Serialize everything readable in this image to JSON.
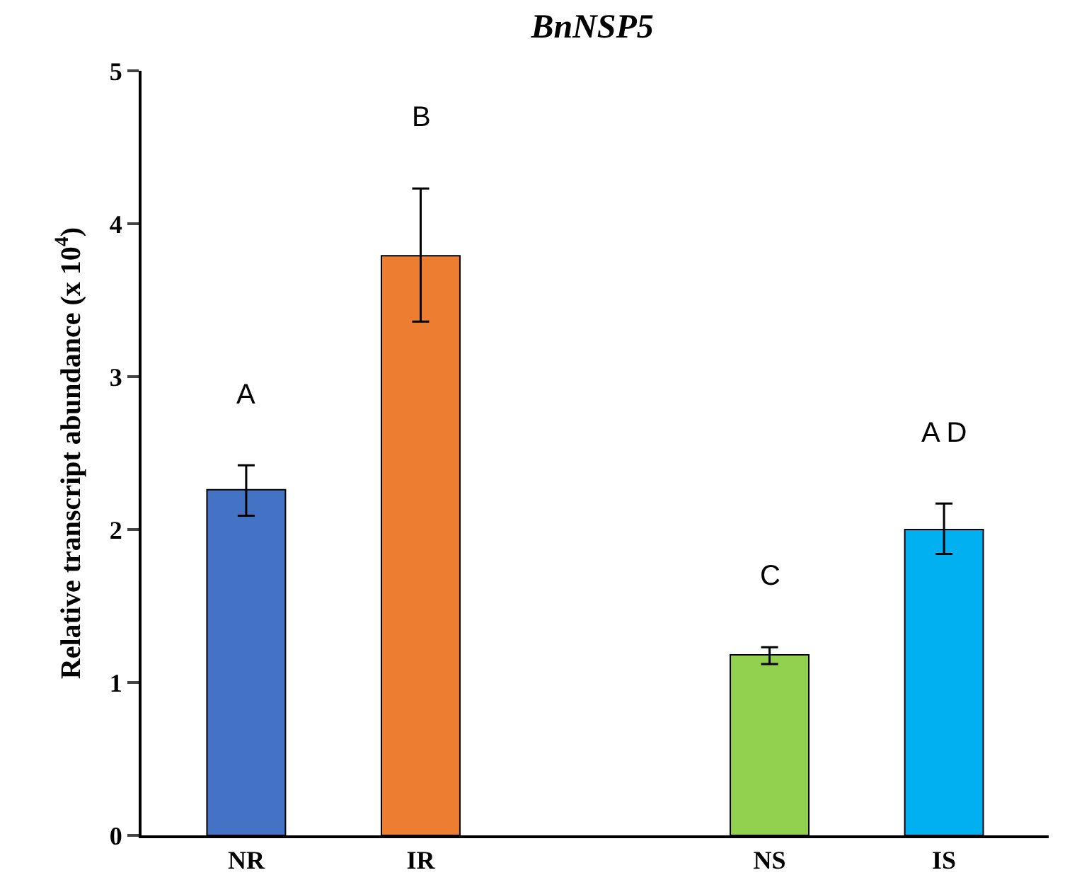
{
  "chart_data": {
    "type": "bar",
    "title": "BnNSP5",
    "ylabel": "Relative transcript abundance (x 10$^{4}$)",
    "categories": [
      "NR",
      "IR",
      null,
      "NS",
      "IS"
    ],
    "values": [
      2.26,
      3.79,
      null,
      1.18,
      2.0
    ],
    "colors": [
      "#4472c4",
      "#ed7d31",
      null,
      "#92d050",
      "#00b0f0"
    ],
    "errors": [
      [
        2.09,
        2.42
      ],
      [
        3.36,
        4.23
      ],
      null,
      [
        1.12,
        1.23
      ],
      [
        1.84,
        2.17
      ]
    ],
    "ylim": [
      0,
      5
    ],
    "yticks": [
      0,
      1,
      2,
      3,
      4,
      5
    ],
    "annotations": [
      "A",
      "B",
      "C",
      "A D"
    ]
  }
}
